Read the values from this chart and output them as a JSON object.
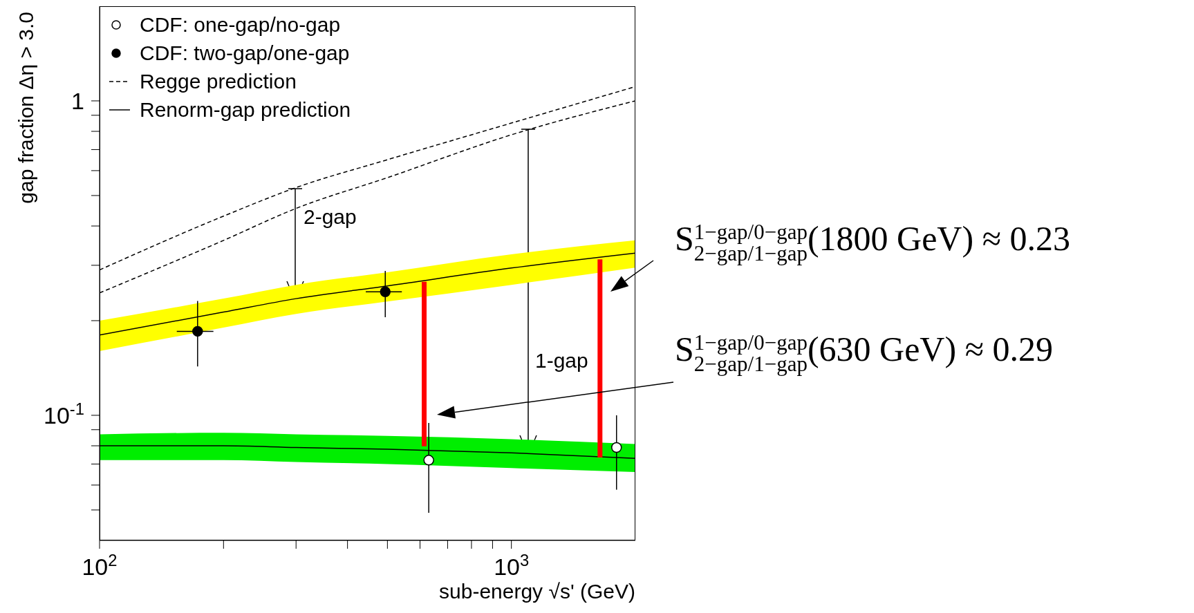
{
  "chart_data": {
    "type": "scatter",
    "xlabel": "sub-energy √s' (GeV)",
    "ylabel": "gap fraction Δη > 3.0",
    "log": "xy",
    "xlim": [
      100,
      2000
    ],
    "ylim": [
      0.04,
      2
    ],
    "xticks": [
      {
        "value": 100,
        "label": "10$^{2}$"
      },
      {
        "value": 200,
        "label": null
      },
      {
        "value": 300,
        "label": null
      },
      {
        "value": 400,
        "label": null
      },
      {
        "value": 500,
        "label": null
      },
      {
        "value": 600,
        "label": null
      },
      {
        "value": 700,
        "label": null
      },
      {
        "value": 800,
        "label": null
      },
      {
        "value": 900,
        "label": null
      },
      {
        "value": 1000,
        "label": "10$^{3}$"
      }
    ],
    "yticks": [
      {
        "value": 0.05,
        "label": null
      },
      {
        "value": 0.06,
        "label": null
      },
      {
        "value": 0.07,
        "label": null
      },
      {
        "value": 0.08,
        "label": null
      },
      {
        "value": 0.09,
        "label": null
      },
      {
        "value": 0.1,
        "label": "10$^{-1}$"
      },
      {
        "value": 0.2,
        "label": null
      },
      {
        "value": 0.3,
        "label": null
      },
      {
        "value": 0.4,
        "label": null
      },
      {
        "value": 0.5,
        "label": null
      },
      {
        "value": 0.6,
        "label": null
      },
      {
        "value": 0.7,
        "label": null
      },
      {
        "value": 0.8,
        "label": null
      },
      {
        "value": 0.9,
        "label": null
      },
      1
    ],
    "grid": false,
    "legend": "top left",
    "series": [
      {
        "name": "CDF: one-gap/no-gap",
        "x": [
          630,
          1800
        ],
        "values": [
          0.072,
          0.079
        ],
        "errors": [
          [
            0.049,
            0.0946
          ],
          [
            0.058,
            0.1
          ]
        ],
        "color": "#ffffff",
        "marker": "circle"
      },
      {
        "name": "CDF: two-gap/one-gap",
        "x": [
          173,
          494
        ],
        "values": [
          0.185,
          0.247
        ],
        "errors": [
          [
            0.143,
            0.231
          ],
          [
            0.205,
            0.288
          ]
        ],
        "xerrors": [
          [
            154,
            189
          ],
          [
            443,
            542
          ]
        ],
        "color": "#000000",
        "marker": "circle"
      },
      {
        "type": "line",
        "name": "Regge prediction",
        "x": [
          100,
          200,
          300,
          500,
          1000,
          2000
        ],
        "values": [
          0.29,
          0.43,
          0.53,
          0.65,
          0.85,
          1.11
        ],
        "color": "#000000",
        "line_style": "dashed"
      },
      {
        "type": "line",
        "x": [
          100,
          200,
          300,
          500,
          1000,
          2000
        ],
        "values": [
          0.245,
          0.36,
          0.455,
          0.57,
          0.78,
          1.0
        ],
        "color": "#000000",
        "line_style": "dashed"
      },
      {
        "type": "line",
        "name": "Renorm-gap prediction",
        "x": [
          100,
          200,
          300,
          500,
          1000,
          2000
        ],
        "values": [
          0.18,
          0.213,
          0.235,
          0.258,
          0.294,
          0.328
        ],
        "lower": [
          0.16,
          0.19,
          0.21,
          0.23,
          0.26,
          0.295
        ],
        "upper": [
          0.2,
          0.235,
          0.26,
          0.285,
          0.325,
          0.36
        ],
        "color": "#000000",
        "line_style": "solid"
      },
      {
        "type": "line",
        "x": [
          100,
          200,
          300,
          500,
          1000,
          2000
        ],
        "values": [
          0.08,
          0.08,
          0.079,
          0.078,
          0.076,
          0.073
        ],
        "lower": [
          0.072,
          0.072,
          0.071,
          0.07,
          0.068,
          0.066
        ],
        "upper": [
          0.087,
          0.088,
          0.087,
          0.086,
          0.084,
          0.081
        ],
        "color": "#000000",
        "line_style": "solid"
      },
      {
        "type": "bar",
        "x": [
          614,
          1641
        ],
        "base": [
          0.0797,
          0.0734
        ],
        "values": [
          0.186,
          0.24
        ],
        "color": "#ff0000"
      }
    ],
    "annotations": [
      "2-gap",
      "1-gap",
      "S$^{1−gap/0−gap}$$_{2−gap/1−gap}$(1800 GeV) ≈ 0.23",
      "S$^{1−gap/0−gap}$$_{2−gap/1−gap}$(630 GeV) ≈ 0.29"
    ]
  }
}
